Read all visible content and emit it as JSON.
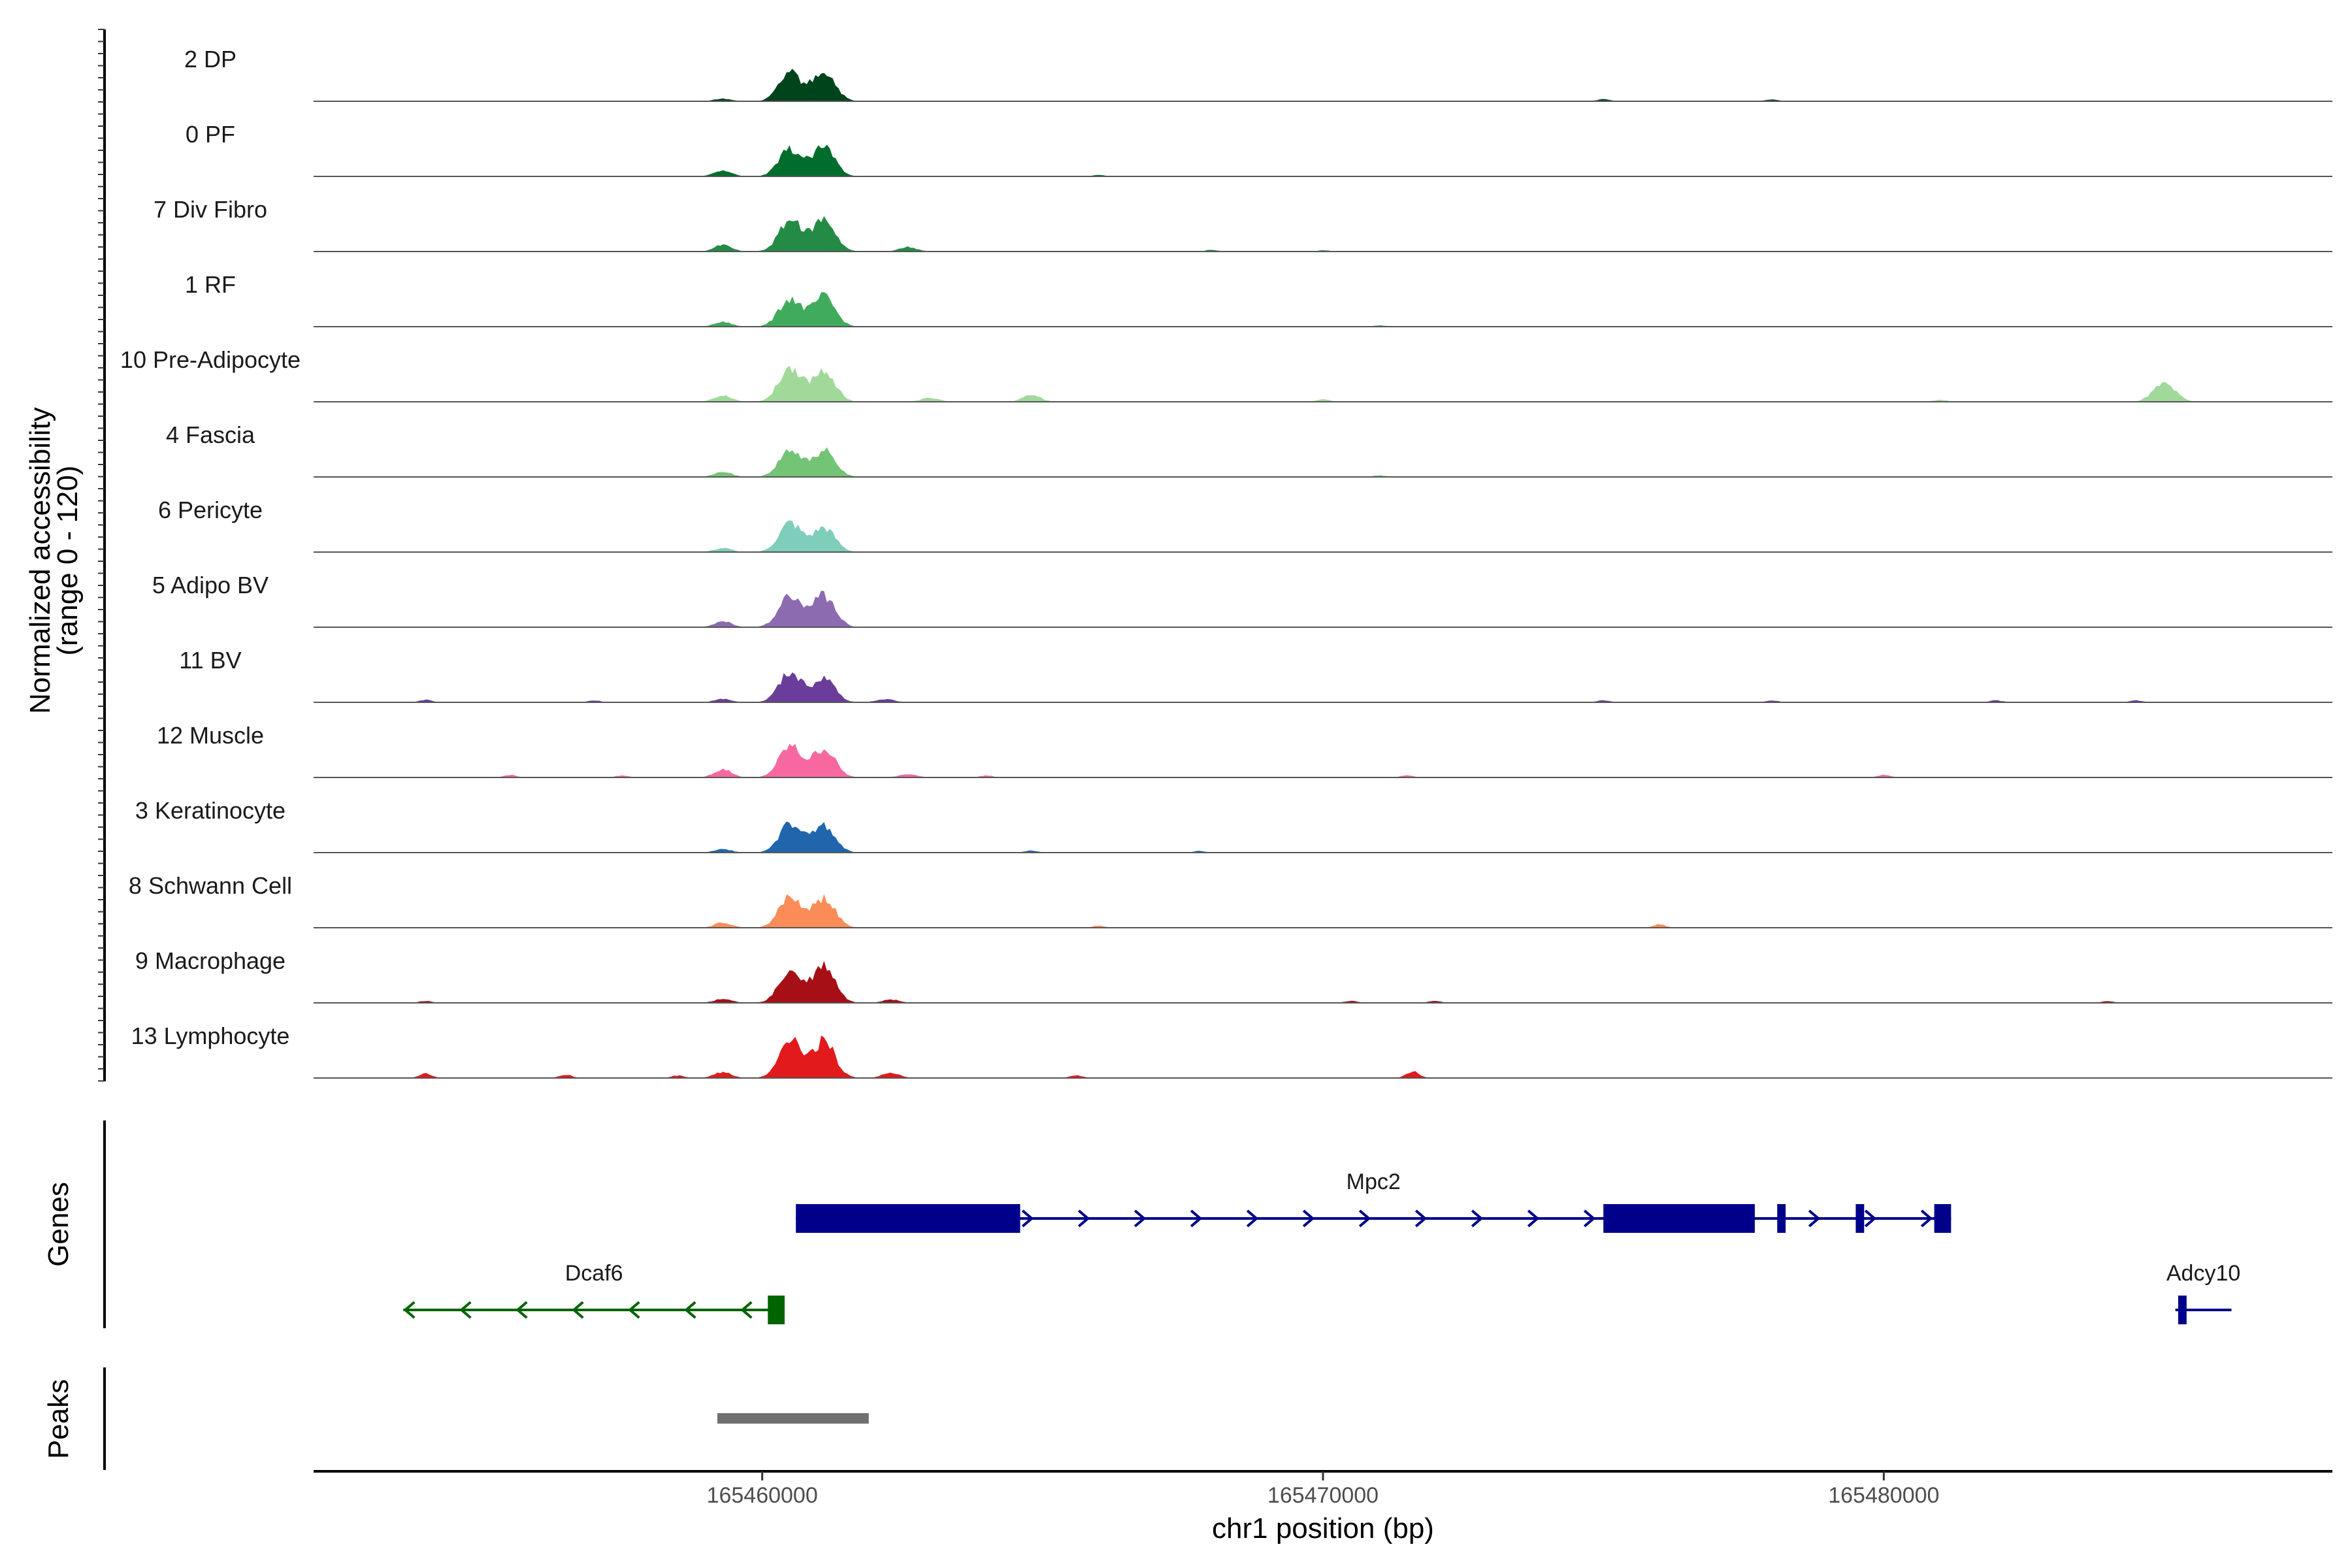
{
  "chart_data": {
    "type": "area",
    "title": "",
    "ylabel_line1": "Normalized accessibility",
    "ylabel_line2": "(range 0 - 120)",
    "yrange": [
      0,
      120
    ],
    "xlabel": "chr1 position (bp)",
    "xlim": [
      165452000,
      165488000
    ],
    "xticks": [
      165460000,
      165470000,
      165480000
    ],
    "xtick_labels": [
      "165460000",
      "165470000",
      "165480000"
    ],
    "tracks": [
      {
        "name": "2 DP",
        "color": "#00441b",
        "peaks": [
          [
            165459300,
            8
          ],
          [
            165460500,
            85
          ],
          [
            165461100,
            90
          ]
        ],
        "small": [
          [
            165475000,
            6
          ],
          [
            165478000,
            5
          ]
        ]
      },
      {
        "name": "0 PF",
        "color": "#006d2c",
        "peaks": [
          [
            165459300,
            18
          ],
          [
            165460500,
            82
          ],
          [
            165461100,
            88
          ]
        ],
        "small": [
          [
            165466000,
            4
          ]
        ]
      },
      {
        "name": "7 Div Fibro",
        "color": "#238b45",
        "peaks": [
          [
            165459300,
            20
          ],
          [
            165460500,
            95
          ],
          [
            165461100,
            100
          ],
          [
            165462600,
            14
          ]
        ],
        "small": [
          [
            165468000,
            5
          ],
          [
            165470000,
            4
          ]
        ]
      },
      {
        "name": "1 RF",
        "color": "#41ab5d",
        "peaks": [
          [
            165459300,
            14
          ],
          [
            165460500,
            85
          ],
          [
            165461100,
            90
          ]
        ],
        "small": [
          [
            165471000,
            4
          ]
        ]
      },
      {
        "name": "10 Pre-Adipocyte",
        "color": "#a1d99b",
        "peaks": [
          [
            165459300,
            20
          ],
          [
            165460500,
            105
          ],
          [
            165461100,
            95
          ],
          [
            165463000,
            12
          ],
          [
            165464800,
            22
          ],
          [
            165485000,
            55
          ]
        ],
        "small": [
          [
            165470000,
            8
          ],
          [
            165481000,
            6
          ]
        ]
      },
      {
        "name": "4 Fascia",
        "color": "#74c476",
        "peaks": [
          [
            165459300,
            16
          ],
          [
            165460500,
            85
          ],
          [
            165461100,
            80
          ]
        ],
        "small": [
          [
            165471000,
            5
          ]
        ]
      },
      {
        "name": "6 Pericyte",
        "color": "#7fcdbb",
        "peaks": [
          [
            165459300,
            12
          ],
          [
            165460500,
            90
          ],
          [
            165461100,
            75
          ]
        ],
        "small": []
      },
      {
        "name": "5 Adipo BV",
        "color": "#8c6bb1",
        "peaks": [
          [
            165459300,
            18
          ],
          [
            165460500,
            100
          ],
          [
            165461100,
            95
          ]
        ],
        "small": []
      },
      {
        "name": "11 BV",
        "color": "#6a3d9a",
        "peaks": [
          [
            165459300,
            10
          ],
          [
            165460500,
            90
          ],
          [
            165461100,
            72
          ],
          [
            165462200,
            10
          ]
        ],
        "small": [
          [
            165454000,
            8
          ],
          [
            165457000,
            6
          ],
          [
            165475000,
            6
          ],
          [
            165478000,
            6
          ],
          [
            165482000,
            6
          ],
          [
            165484500,
            6
          ]
        ]
      },
      {
        "name": "12 Muscle",
        "color": "#f768a1",
        "peaks": [
          [
            165459300,
            25
          ],
          [
            165460500,
            95
          ],
          [
            165461100,
            88
          ],
          [
            165462600,
            10
          ]
        ],
        "small": [
          [
            165455500,
            8
          ],
          [
            165457500,
            6
          ],
          [
            165464000,
            6
          ],
          [
            165471500,
            6
          ],
          [
            165480000,
            8
          ]
        ]
      },
      {
        "name": "3 Keratinocyte",
        "color": "#2166ac",
        "peaks": [
          [
            165459300,
            10
          ],
          [
            165460500,
            85
          ],
          [
            165461100,
            82
          ]
        ],
        "small": [
          [
            165464800,
            6
          ],
          [
            165467800,
            5
          ]
        ]
      },
      {
        "name": "8 Schwann Cell",
        "color": "#fc8d59",
        "peaks": [
          [
            165459300,
            16
          ],
          [
            165460500,
            95
          ],
          [
            165461100,
            90
          ]
        ],
        "small": [
          [
            165466000,
            6
          ],
          [
            165476000,
            10
          ]
        ]
      },
      {
        "name": "9 Macrophage",
        "color": "#a50f15",
        "peaks": [
          [
            165459300,
            12
          ],
          [
            165460500,
            95
          ],
          [
            165461100,
            115
          ],
          [
            165462300,
            10
          ]
        ],
        "small": [
          [
            165454000,
            6
          ],
          [
            165470500,
            6
          ],
          [
            165472000,
            6
          ],
          [
            165484000,
            5
          ]
        ]
      },
      {
        "name": "13 Lymphocyte",
        "color": "#e31a1c",
        "peaks": [
          [
            165459300,
            18
          ],
          [
            165460500,
            115
          ],
          [
            165461100,
            112
          ],
          [
            165462300,
            16
          ]
        ],
        "small": [
          [
            165454000,
            14
          ],
          [
            165456500,
            10
          ],
          [
            165458500,
            8
          ],
          [
            165465600,
            8
          ],
          [
            165471600,
            20
          ]
        ]
      }
    ],
    "genes_title": "Genes",
    "genes": [
      {
        "name": "Mpc2",
        "strand": "+",
        "color": "#00008b",
        "start": 165460600,
        "end": 165481200,
        "row": 0,
        "exons": [
          [
            165460600,
            165464600
          ],
          [
            165475000,
            165477700
          ],
          [
            165478100,
            165478250
          ],
          [
            165479500,
            165479650
          ],
          [
            165480900,
            165481200
          ]
        ]
      },
      {
        "name": "Dcaf6",
        "strand": "-",
        "color": "#006400",
        "start": 165453600,
        "end": 165460400,
        "row": 1,
        "exons": [
          [
            165460100,
            165460400
          ]
        ]
      },
      {
        "name": "Adcy10",
        "strand": "+",
        "color": "#00008b",
        "start": 165485200,
        "end": 165486200,
        "row": 1,
        "exons": [
          [
            165485250,
            165485400
          ]
        ]
      }
    ],
    "peaks_title": "Peaks",
    "peak_regions": [
      [
        165459200,
        165461900
      ]
    ],
    "peak_color": "#707070"
  }
}
